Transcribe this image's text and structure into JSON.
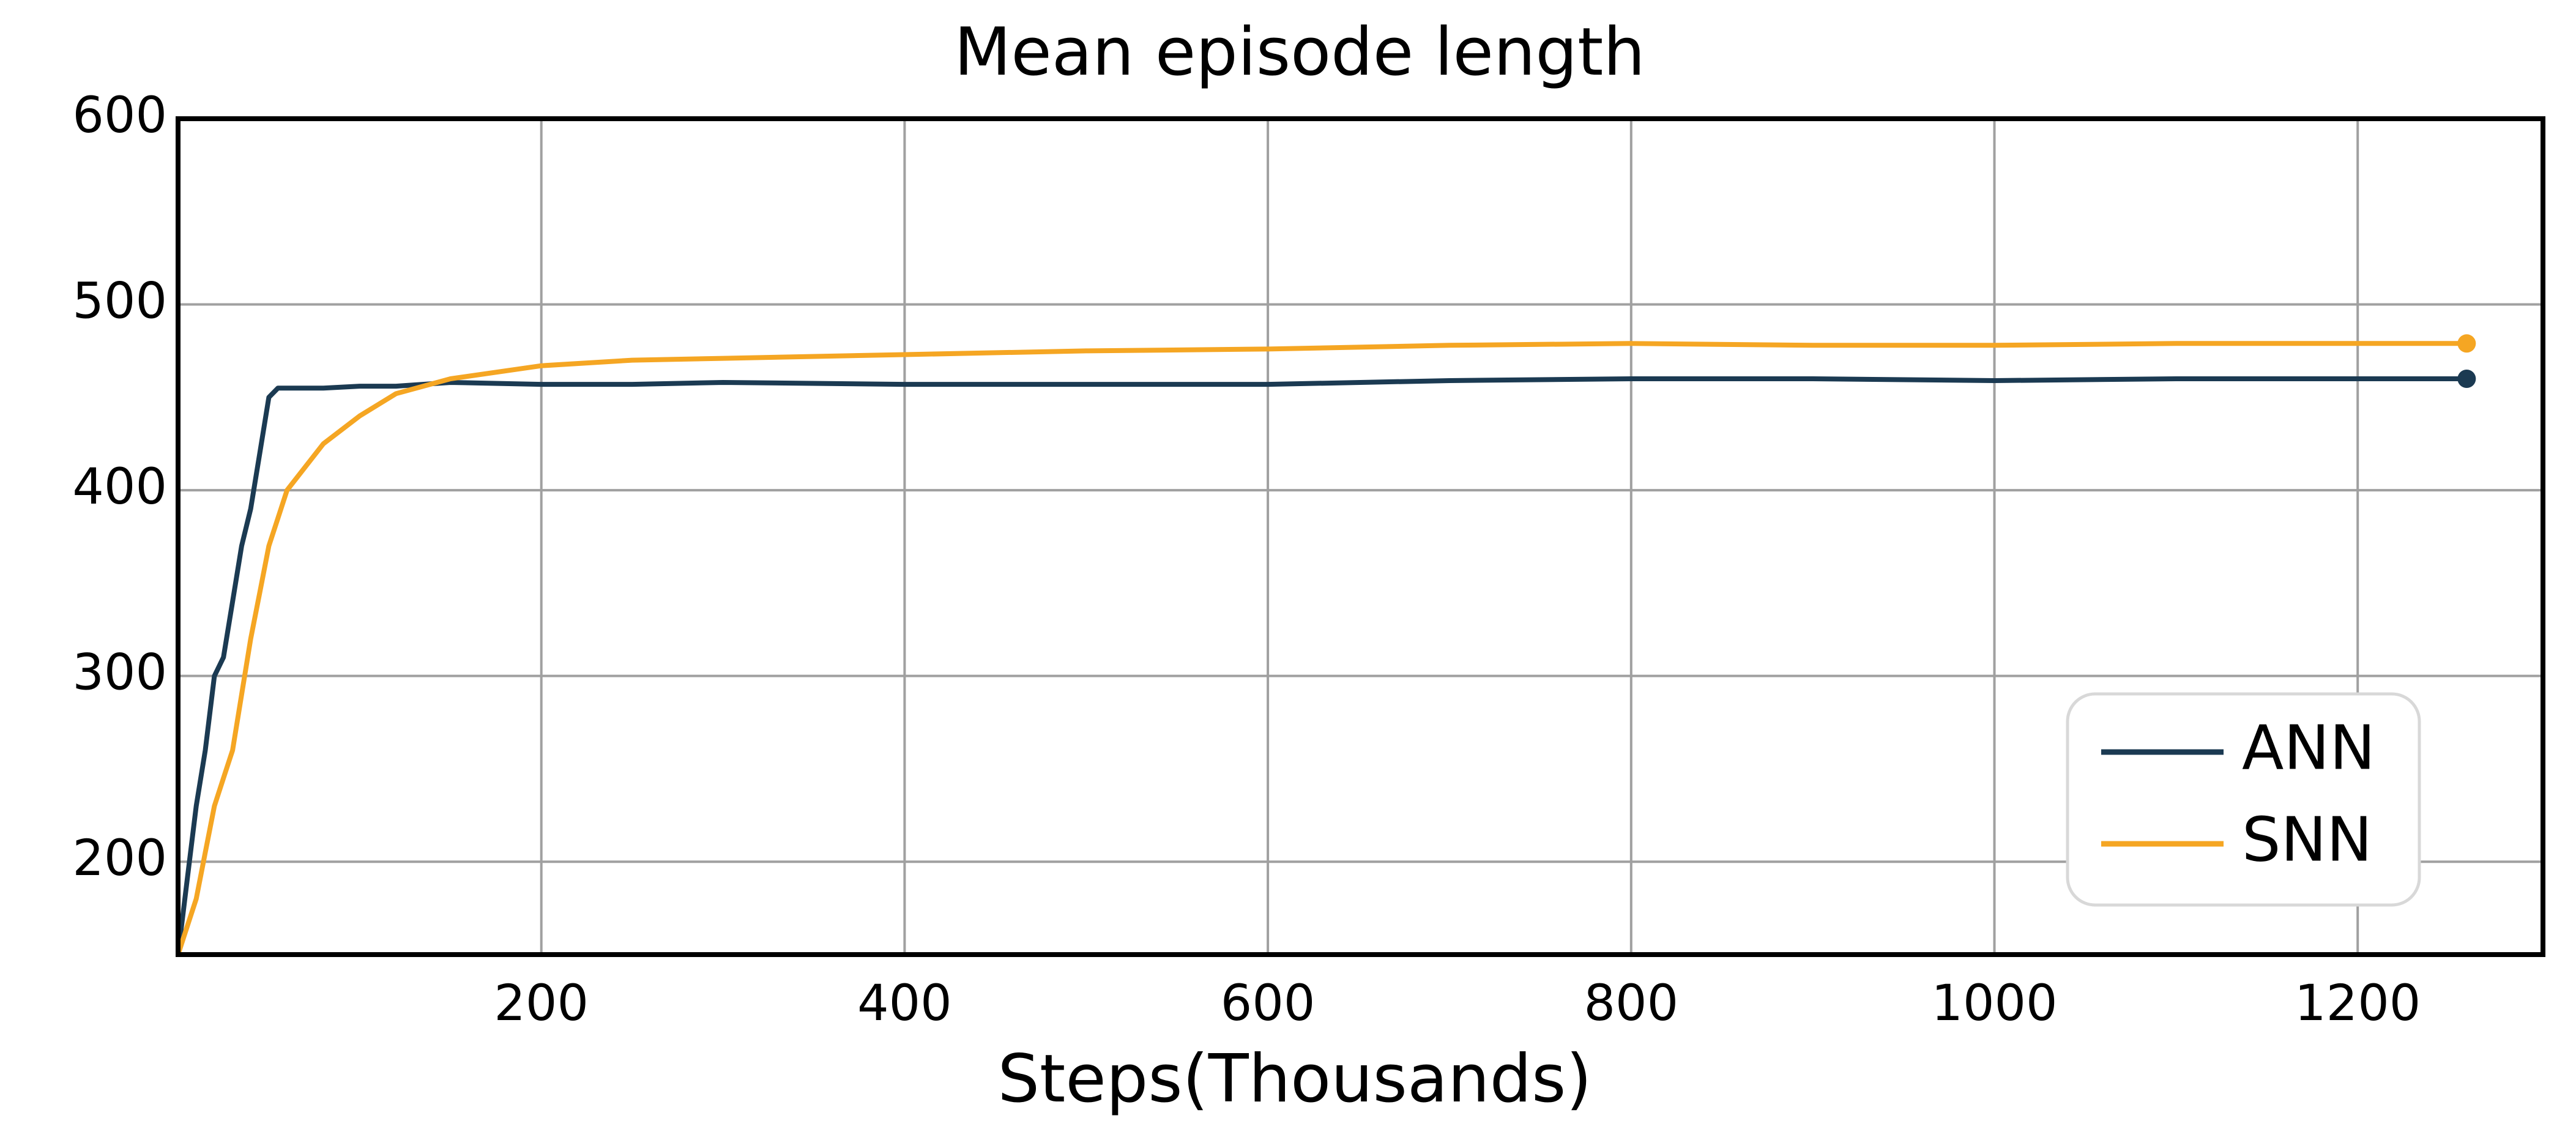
{
  "chart_data": {
    "type": "line",
    "title": "Mean episode length",
    "x_label": "Steps(Thousands)",
    "x": [
      0,
      5,
      10,
      15,
      20,
      25,
      30,
      35,
      40,
      45,
      50,
      55,
      60,
      80,
      100,
      120,
      150,
      200,
      250,
      300,
      400,
      500,
      600,
      700,
      800,
      900,
      1000,
      1100,
      1200,
      1260
    ],
    "series": [
      {
        "name": "ANN",
        "color": "#1b3a52",
        "values": [
          150,
          190,
          230,
          260,
          300,
          310,
          340,
          370,
          390,
          420,
          450,
          455,
          455,
          455,
          456,
          456,
          458,
          457,
          457,
          458,
          457,
          457,
          457,
          459,
          460,
          460,
          459,
          460,
          460,
          460
        ]
      },
      {
        "name": "SNN",
        "color": "#f5a623",
        "values": [
          150,
          165,
          180,
          205,
          230,
          245,
          260,
          290,
          320,
          345,
          370,
          385,
          400,
          425,
          440,
          452,
          460,
          467,
          470,
          471,
          473,
          475,
          476,
          478,
          479,
          478,
          478,
          479,
          479,
          479
        ]
      }
    ],
    "xlim": [
      0,
      1302
    ],
    "ylim": [
      150,
      600
    ],
    "xticks": [
      200,
      400,
      600,
      800,
      1000,
      1200
    ],
    "yticks": [
      200,
      300,
      400,
      500,
      600
    ],
    "grid": true,
    "legend": "lower right"
  }
}
